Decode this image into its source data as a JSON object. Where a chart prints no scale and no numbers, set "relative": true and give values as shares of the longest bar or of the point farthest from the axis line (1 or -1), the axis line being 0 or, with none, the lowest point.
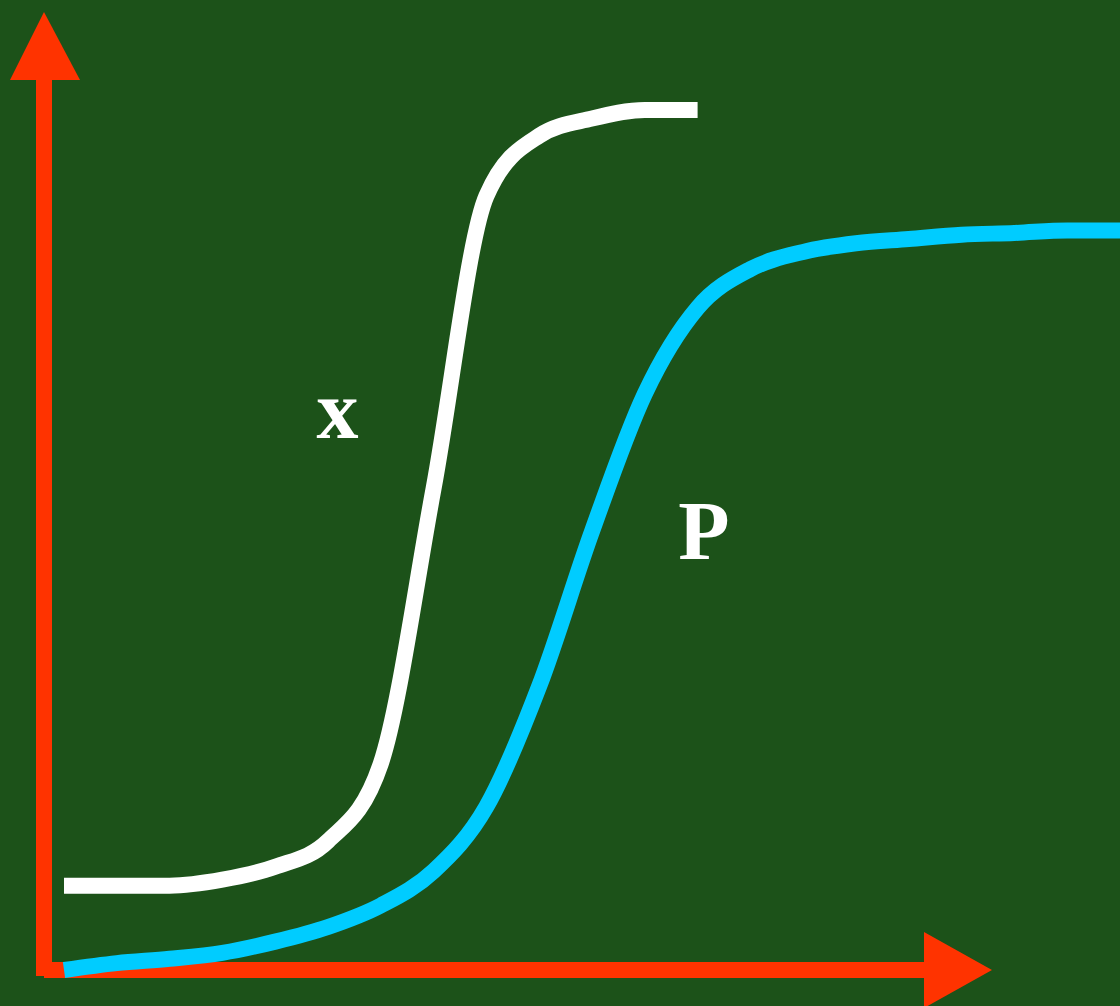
{
  "chart_data": {
    "type": "line",
    "relative": true,
    "legend": false,
    "marker": "none",
    "line_style": "solid",
    "categories": [
      null,
      null,
      null,
      null,
      null,
      null,
      null,
      null,
      null,
      null,
      null,
      null,
      null,
      null,
      null,
      null,
      null,
      null,
      null,
      null,
      null
    ],
    "series": [
      {
        "name": "x",
        "color": "#ffffff",
        "values": [
          0.098,
          0.098,
          0.098,
          0.105,
          0.12,
          0.15,
          0.24,
          0.56,
          0.9,
          0.97,
          0.99,
          1,
          1,
          null,
          null,
          null,
          null,
          null,
          null,
          null,
          null
        ]
      },
      {
        "name": "P",
        "color": "#00ccff",
        "values": [
          0,
          0.008,
          0.013,
          0.02,
          0.033,
          0.05,
          0.075,
          0.115,
          0.19,
          0.33,
          0.51,
          0.67,
          0.77,
          0.815,
          0.835,
          0.845,
          0.85,
          0.855,
          0.857,
          0.86,
          0.86
        ]
      }
    ]
  }
}
